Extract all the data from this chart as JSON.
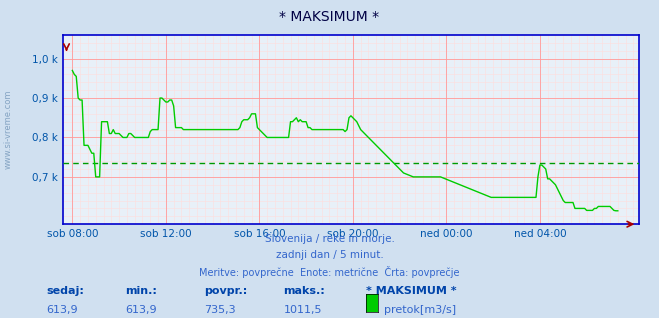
{
  "title": "* MAKSIMUM *",
  "bg_color": "#d0e0f0",
  "plot_bg_color": "#e8f0f8",
  "line_color": "#00cc00",
  "avg_line_color": "#009900",
  "grid_color_major": "#ff9999",
  "grid_color_minor": "#ffdddd",
  "axis_color": "#0000cc",
  "tick_label_color": "#0055aa",
  "title_color": "#000044",
  "text_color": "#3366cc",
  "ylabel_text": "www.si-vreme.com",
  "xlabel_ticks": [
    "sob 08:00",
    "sob 12:00",
    "sob 16:00",
    "sob 20:00",
    "ned 00:00",
    "ned 04:00"
  ],
  "xlabel_tick_positions": [
    0,
    48,
    96,
    144,
    192,
    240
  ],
  "total_points": 289,
  "ylim_min": 580,
  "ylim_max": 1060,
  "yticks": [
    700,
    800,
    900,
    1000
  ],
  "ytick_labels": [
    "0,7 k",
    "0,8 k",
    "0,9 k",
    "1,0 k"
  ],
  "avg_value": 735.3,
  "series_name": "* MAKSIMUM *",
  "legend_label": "pretok[m3/s]",
  "legend_color": "#00cc00",
  "subtitle1": "Slovenija / reke in morje.",
  "subtitle2": "zadnji dan / 5 minut.",
  "subtitle3": "Meritve: povprečne  Enote: metrične  Črta: povprečje",
  "footer_labels": [
    "sedaj:",
    "min.:",
    "povpr.:",
    "maks.:"
  ],
  "footer_values": [
    "613,9",
    "613,9",
    "735,3",
    "1011,5"
  ],
  "data_y": [
    970,
    960,
    955,
    900,
    895,
    895,
    780,
    780,
    780,
    770,
    760,
    760,
    700,
    700,
    700,
    840,
    840,
    840,
    840,
    810,
    810,
    820,
    810,
    810,
    810,
    805,
    800,
    800,
    800,
    810,
    810,
    805,
    800,
    800,
    800,
    800,
    800,
    800,
    800,
    800,
    815,
    820,
    820,
    820,
    820,
    900,
    900,
    895,
    890,
    890,
    895,
    895,
    880,
    825,
    825,
    825,
    825,
    820,
    820,
    820,
    820,
    820,
    820,
    820,
    820,
    820,
    820,
    820,
    820,
    820,
    820,
    820,
    820,
    820,
    820,
    820,
    820,
    820,
    820,
    820,
    820,
    820,
    820,
    820,
    820,
    820,
    825,
    840,
    845,
    845,
    845,
    850,
    860,
    860,
    860,
    825,
    820,
    815,
    810,
    805,
    800,
    800,
    800,
    800,
    800,
    800,
    800,
    800,
    800,
    800,
    800,
    800,
    840,
    840,
    845,
    850,
    840,
    845,
    840,
    840,
    840,
    825,
    825,
    820,
    820,
    820,
    820,
    820,
    820,
    820,
    820,
    820,
    820,
    820,
    820,
    820,
    820,
    820,
    820,
    820,
    815,
    820,
    850,
    855,
    850,
    845,
    840,
    830,
    820,
    815,
    810,
    805,
    800,
    795,
    790,
    785,
    780,
    775,
    770,
    765,
    760,
    755,
    750,
    745,
    740,
    735,
    730,
    725,
    720,
    715,
    710,
    708,
    706,
    704,
    702,
    700,
    700,
    700,
    700,
    700,
    700,
    700,
    700,
    700,
    700,
    700,
    700,
    700,
    700,
    700,
    698,
    696,
    694,
    692,
    690,
    688,
    686,
    684,
    682,
    680,
    678,
    676,
    674,
    672,
    670,
    668,
    666,
    664,
    662,
    660,
    658,
    656,
    654,
    652,
    650,
    648,
    648,
    648,
    648,
    648,
    648,
    648,
    648,
    648,
    648,
    648,
    648,
    648,
    648,
    648,
    648,
    648,
    648,
    648,
    648,
    648,
    648,
    648,
    648,
    700,
    730,
    730,
    725,
    720,
    695,
    695,
    690,
    685,
    680,
    670,
    660,
    650,
    640,
    635,
    635,
    635,
    635,
    635,
    620,
    620,
    620,
    620,
    620,
    620,
    615,
    615,
    615,
    615,
    620,
    620,
    625,
    625,
    625,
    625,
    625,
    625,
    625,
    620,
    615,
    614,
    614
  ]
}
